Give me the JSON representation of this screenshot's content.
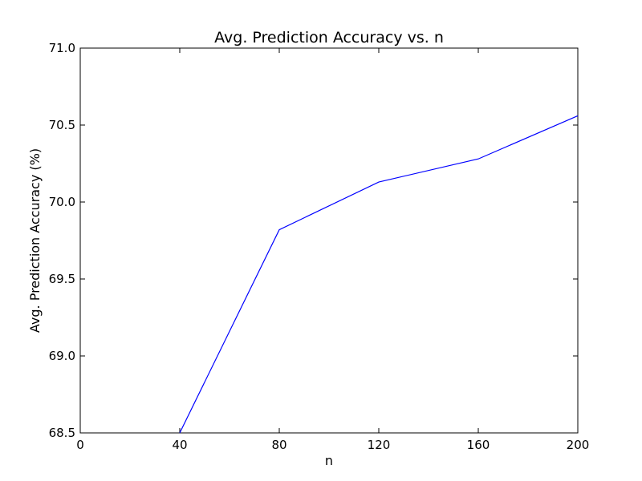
{
  "chart_data": {
    "type": "line",
    "title": "Avg. Prediction Accuracy vs. n",
    "xlabel": "n",
    "ylabel": "Avg. Prediction Accuracy (%)",
    "xlim": [
      0,
      200
    ],
    "ylim": [
      68.5,
      71.0
    ],
    "xticks": [
      0,
      40,
      80,
      120,
      160,
      200
    ],
    "xtick_labels": [
      "0",
      "40",
      "80",
      "120",
      "160",
      "200"
    ],
    "yticks": [
      68.5,
      69.0,
      69.5,
      70.0,
      70.5,
      71.0
    ],
    "ytick_labels": [
      "68.5",
      "69.0",
      "69.5",
      "70.0",
      "70.5",
      "71.0"
    ],
    "grid": false,
    "series": [
      {
        "color": "#0000ff",
        "x": [
          40,
          80,
          120,
          160,
          200
        ],
        "y": [
          68.5,
          69.82,
          70.13,
          70.28,
          70.56
        ]
      }
    ]
  }
}
